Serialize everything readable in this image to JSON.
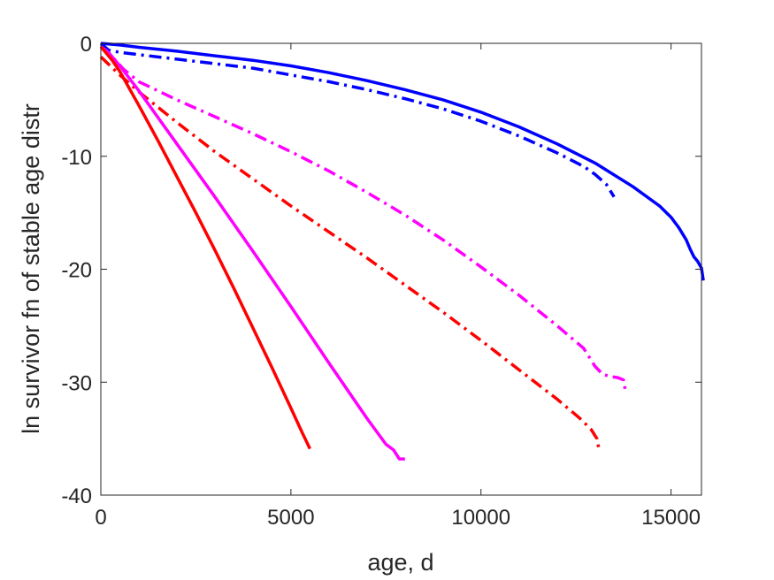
{
  "chart_data": {
    "type": "line",
    "title": "",
    "xlabel": "age, d",
    "ylabel": "ln survivor fn of stable age distr",
    "xlim": [
      0,
      15800
    ],
    "ylim": [
      -40,
      0
    ],
    "xticks": [
      0,
      5000,
      10000,
      15000
    ],
    "yticks": [
      -40,
      -30,
      -20,
      -10,
      0
    ],
    "xtick_labels": [
      "0",
      "5000",
      "10000",
      "15000"
    ],
    "ytick_labels": [
      "-40",
      "-30",
      "-20",
      "-10",
      "0"
    ],
    "grid": false,
    "legend": "none",
    "series": [
      {
        "color": "#0000ff",
        "style": "solid",
        "x": [
          0,
          500,
          1000,
          2000,
          3000,
          4000,
          5000,
          6000,
          7000,
          8000,
          9000,
          10000,
          11000,
          12000,
          13000,
          14000,
          14700,
          15000,
          15200,
          15400,
          15500,
          15600,
          15700,
          15800,
          15850
        ],
        "y": [
          0,
          -0.15,
          -0.35,
          -0.7,
          -1.1,
          -1.5,
          -2.0,
          -2.6,
          -3.3,
          -4.1,
          -5.0,
          -6.1,
          -7.4,
          -8.9,
          -10.6,
          -12.7,
          -14.4,
          -15.4,
          -16.3,
          -17.4,
          -18.2,
          -18.9,
          -19.3,
          -19.9,
          -21.0
        ]
      },
      {
        "color": "#0000ff",
        "style": "dashdot",
        "x": [
          0,
          200,
          500,
          1000,
          2000,
          3000,
          4000,
          5000,
          6000,
          7000,
          8000,
          9000,
          10000,
          11000,
          12000,
          12700,
          13000,
          13300,
          13500
        ],
        "y": [
          0,
          -0.6,
          -0.8,
          -1.0,
          -1.4,
          -1.8,
          -2.2,
          -2.8,
          -3.4,
          -4.1,
          -4.9,
          -5.8,
          -6.9,
          -8.2,
          -9.7,
          -10.9,
          -11.6,
          -12.5,
          -13.6
        ]
      },
      {
        "color": "#ff00ff",
        "style": "dashdot",
        "x": [
          0,
          300,
          600,
          1000,
          2000,
          3000,
          4000,
          5000,
          6000,
          7000,
          8000,
          9000,
          10000,
          11000,
          12000,
          12700,
          13000,
          13200,
          13400,
          13600,
          13750,
          13800
        ],
        "y": [
          -0.3,
          -1.2,
          -2.3,
          -3.4,
          -5.0,
          -6.5,
          -8.0,
          -9.6,
          -11.3,
          -13.2,
          -15.2,
          -17.4,
          -19.8,
          -22.3,
          -25.0,
          -27.0,
          -28.6,
          -29.3,
          -29.5,
          -29.6,
          -29.8,
          -30.8
        ]
      },
      {
        "color": "#ff0000",
        "style": "dashdot",
        "x": [
          0,
          500,
          1000,
          2000,
          3000,
          4000,
          5000,
          6000,
          7000,
          8000,
          9000,
          10000,
          11000,
          12000,
          12600,
          12900,
          13050,
          13100
        ],
        "y": [
          -1.2,
          -2.8,
          -4.3,
          -7.0,
          -9.6,
          -12.0,
          -14.4,
          -16.7,
          -19.0,
          -21.4,
          -23.8,
          -26.3,
          -28.9,
          -31.5,
          -33.2,
          -34.2,
          -35.0,
          -35.9
        ]
      },
      {
        "color": "#ff00ff",
        "style": "solid",
        "x": [
          0,
          200,
          500,
          1000,
          2000,
          3000,
          4000,
          5000,
          6000,
          7000,
          7500,
          7700,
          7850,
          8000
        ],
        "y": [
          -0.3,
          -0.8,
          -2.0,
          -4.2,
          -8.9,
          -13.6,
          -18.4,
          -23.3,
          -28.3,
          -33.2,
          -35.5,
          -36.0,
          -36.8,
          -36.8
        ]
      },
      {
        "color": "#ff0000",
        "style": "solid",
        "x": [
          0,
          300,
          500,
          1000,
          1500,
          2000,
          2500,
          3000,
          3500,
          4000,
          4500,
          5000,
          5300,
          5500
        ],
        "y": [
          -0.3,
          -1.5,
          -2.5,
          -5.5,
          -8.6,
          -11.8,
          -15.0,
          -18.3,
          -21.7,
          -25.2,
          -28.7,
          -32.3,
          -34.5,
          -35.9
        ]
      }
    ]
  }
}
